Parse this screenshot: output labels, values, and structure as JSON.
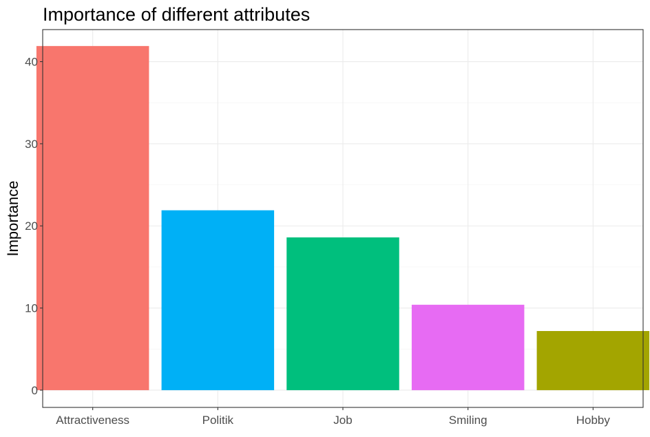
{
  "chart_data": {
    "type": "bar",
    "title": "Importance of different attributes",
    "xlabel": "",
    "ylabel": "Importance",
    "categories": [
      "Attractiveness",
      "Politik",
      "Job",
      "Smiling",
      "Hobby"
    ],
    "values": [
      41.9,
      21.9,
      18.6,
      10.4,
      7.2
    ],
    "colors": [
      "#F8766D",
      "#00B0F6",
      "#00BF7D",
      "#E76BF3",
      "#A3A500"
    ],
    "ylim": [
      -2.1,
      43.9
    ],
    "yticks": [
      0,
      10,
      20,
      30,
      40
    ],
    "grid": true,
    "legend": "none",
    "theme": {
      "background": "#ffffff",
      "grid_color": "#ebebeb",
      "border_color": "#333333",
      "tick_label_color": "#4d4d4d"
    }
  }
}
